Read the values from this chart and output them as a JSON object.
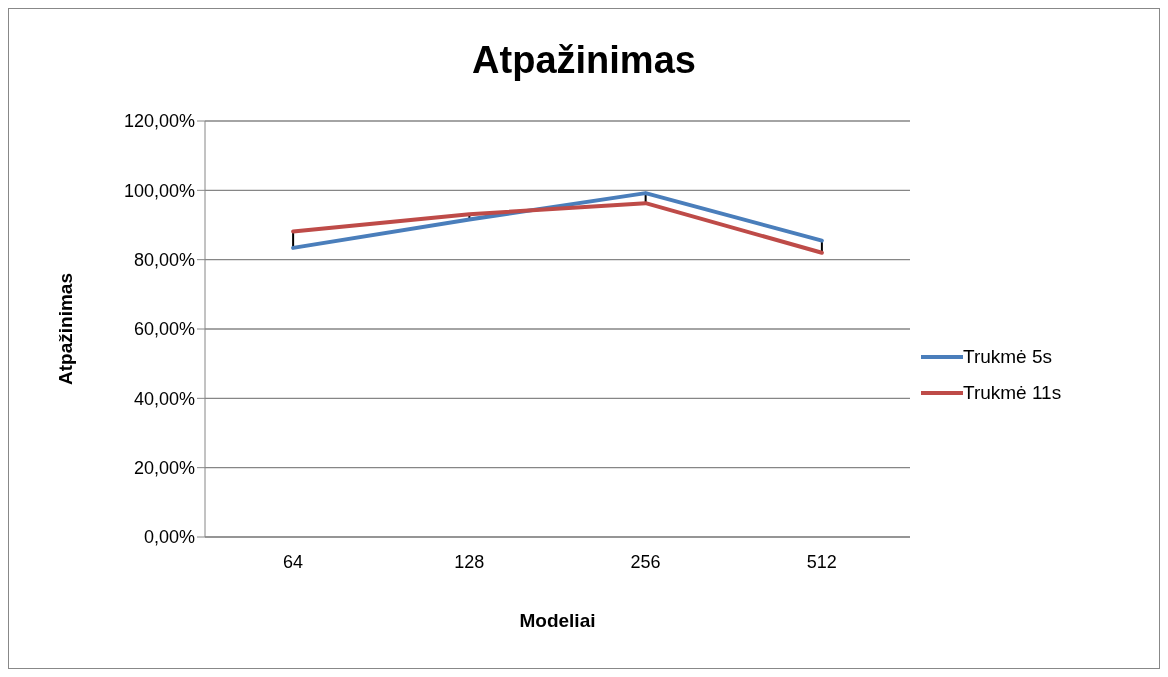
{
  "chart_data": {
    "type": "line",
    "title": "Atpažinimas",
    "xlabel": "Modeliai",
    "ylabel": "Atpažinimas",
    "categories": [
      "64",
      "128",
      "256",
      "512"
    ],
    "series": [
      {
        "name": "Trukmė 5s",
        "color": "#4a7ebb",
        "values": [
          83.4,
          91.6,
          99.2,
          85.5
        ]
      },
      {
        "name": "Trukmė 11s",
        "color": "#be4b48",
        "values": [
          88.1,
          93.1,
          96.3,
          82.0
        ]
      }
    ],
    "ylim": [
      0,
      120
    ],
    "yticks": [
      {
        "value": 0,
        "label": "0,00%"
      },
      {
        "value": 20,
        "label": "20,00%"
      },
      {
        "value": 40,
        "label": "40,00%"
      },
      {
        "value": 60,
        "label": "60,00%"
      },
      {
        "value": 80,
        "label": "80,00%"
      },
      {
        "value": 100,
        "label": "100,00%"
      },
      {
        "value": 120,
        "label": "120,00%"
      }
    ],
    "grid": "y",
    "legend": "right",
    "marker": "none",
    "line_style": "solid"
  }
}
